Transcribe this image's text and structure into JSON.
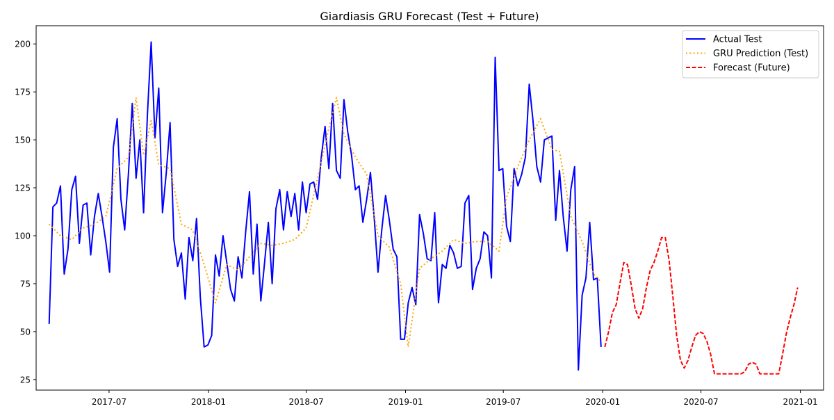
{
  "chart_data": {
    "type": "line",
    "title": "Giardiasis GRU Forecast (Test + Future)",
    "xlabel": "",
    "ylabel": "",
    "grid": false,
    "legend_position": "top-right",
    "x_ticks": [
      "2017-07",
      "2018-01",
      "2018-07",
      "2019-01",
      "2019-07",
      "2020-01",
      "2020-07",
      "2021-01"
    ],
    "y_ticks": [
      25,
      50,
      75,
      100,
      125,
      150,
      175,
      200
    ],
    "xlim": [
      "2017-02-16",
      "2021-02-13"
    ],
    "ylim": [
      19.5,
      209.5
    ],
    "series": [
      {
        "name": "Actual Test",
        "color": "#0000ff",
        "style": "solid",
        "x": [
          "2017-03-12",
          "2017-03-19",
          "2017-03-26",
          "2017-04-02",
          "2017-04-09",
          "2017-04-16",
          "2017-04-23",
          "2017-04-30",
          "2017-05-07",
          "2017-05-14",
          "2017-05-21",
          "2017-05-28",
          "2017-06-04",
          "2017-06-11",
          "2017-06-18",
          "2017-06-25",
          "2017-07-02",
          "2017-07-09",
          "2017-07-16",
          "2017-07-23",
          "2017-07-30",
          "2017-08-06",
          "2017-08-13",
          "2017-08-20",
          "2017-08-27",
          "2017-09-03",
          "2017-09-10",
          "2017-09-17",
          "2017-09-24",
          "2017-10-01",
          "2017-10-08",
          "2017-10-15",
          "2017-10-22",
          "2017-10-29",
          "2017-11-05",
          "2017-11-12",
          "2017-11-19",
          "2017-11-26",
          "2017-12-03",
          "2017-12-10",
          "2017-12-17",
          "2017-12-24",
          "2017-12-31",
          "2018-01-07",
          "2018-01-14",
          "2018-01-21",
          "2018-01-28",
          "2018-02-04",
          "2018-02-11",
          "2018-02-18",
          "2018-02-25",
          "2018-03-04",
          "2018-03-11",
          "2018-03-18",
          "2018-03-25",
          "2018-04-01",
          "2018-04-08",
          "2018-04-15",
          "2018-04-22",
          "2018-04-29",
          "2018-05-06",
          "2018-05-13",
          "2018-05-20",
          "2018-05-27",
          "2018-06-03",
          "2018-06-10",
          "2018-06-17",
          "2018-06-24",
          "2018-07-01",
          "2018-07-08",
          "2018-07-15",
          "2018-07-22",
          "2018-07-29",
          "2018-08-05",
          "2018-08-12",
          "2018-08-19",
          "2018-08-26",
          "2018-09-02",
          "2018-09-09",
          "2018-09-16",
          "2018-09-23",
          "2018-09-30",
          "2018-10-07",
          "2018-10-14",
          "2018-10-21",
          "2018-10-28",
          "2018-11-04",
          "2018-11-11",
          "2018-11-18",
          "2018-11-25",
          "2018-12-02",
          "2018-12-09",
          "2018-12-16",
          "2018-12-23",
          "2018-12-30",
          "2019-01-06",
          "2019-01-13",
          "2019-01-20",
          "2019-01-27",
          "2019-02-03",
          "2019-02-10",
          "2019-02-17",
          "2019-02-24",
          "2019-03-03",
          "2019-03-10",
          "2019-03-17",
          "2019-03-24",
          "2019-03-31",
          "2019-04-07",
          "2019-04-14",
          "2019-04-21",
          "2019-04-28",
          "2019-05-05",
          "2019-05-12",
          "2019-05-19",
          "2019-05-26",
          "2019-06-02",
          "2019-06-09",
          "2019-06-16",
          "2019-06-23",
          "2019-06-30",
          "2019-07-07",
          "2019-07-14",
          "2019-07-21",
          "2019-07-28",
          "2019-08-04",
          "2019-08-11",
          "2019-08-18",
          "2019-08-25",
          "2019-09-01",
          "2019-09-08",
          "2019-09-15",
          "2019-09-22",
          "2019-09-29",
          "2019-10-06",
          "2019-10-13",
          "2019-10-20",
          "2019-10-27",
          "2019-11-03",
          "2019-11-10",
          "2019-11-17",
          "2019-11-24",
          "2019-12-01",
          "2019-12-08",
          "2019-12-15",
          "2019-12-22",
          "2019-12-29"
        ],
        "y": [
          54,
          115,
          117,
          126,
          80,
          93,
          124,
          131,
          96,
          116,
          117,
          90,
          110,
          122,
          110,
          97,
          81,
          146,
          161,
          119,
          103,
          133,
          169,
          130,
          150,
          112,
          163,
          201,
          151,
          177,
          112,
          133,
          159,
          98,
          84,
          91,
          67,
          99,
          87,
          109,
          68,
          42,
          43,
          48,
          90,
          79,
          100,
          86,
          72,
          66,
          89,
          78,
          102,
          123,
          80,
          106,
          66,
          86,
          107,
          75,
          114,
          124,
          103,
          123,
          110,
          122,
          103,
          128,
          112,
          127,
          128,
          119,
          141,
          157,
          135,
          169,
          134,
          130,
          171,
          154,
          142,
          124,
          126,
          107,
          119,
          133,
          109,
          81,
          103,
          121,
          108,
          93,
          89,
          46,
          46,
          65,
          73,
          64,
          111,
          101,
          88,
          87,
          112,
          65,
          85,
          83,
          95,
          91,
          83,
          84,
          117,
          121,
          72,
          83,
          88,
          102,
          100,
          78,
          193,
          134,
          135,
          105,
          97,
          135,
          126,
          132,
          141,
          179,
          160,
          136,
          128,
          150,
          151,
          152,
          108,
          134,
          110,
          92,
          124,
          136,
          30,
          69,
          78,
          107,
          77,
          78,
          42
        ]
      },
      {
        "name": "GRU Prediction (Test)",
        "color": "#ffa500",
        "style": "dotted",
        "x": [
          "2017-03-12",
          "2017-04-02",
          "2017-04-23",
          "2017-05-14",
          "2017-06-04",
          "2017-06-25",
          "2017-07-16",
          "2017-08-06",
          "2017-08-20",
          "2017-09-03",
          "2017-09-17",
          "2017-10-01",
          "2017-10-22",
          "2017-11-12",
          "2017-12-03",
          "2017-12-24",
          "2018-01-14",
          "2018-02-04",
          "2018-02-25",
          "2018-03-18",
          "2018-04-08",
          "2018-04-29",
          "2018-05-20",
          "2018-06-10",
          "2018-07-01",
          "2018-07-22",
          "2018-08-12",
          "2018-08-26",
          "2018-09-09",
          "2018-09-30",
          "2018-10-21",
          "2018-11-11",
          "2018-12-02",
          "2018-12-23",
          "2019-01-06",
          "2019-01-27",
          "2019-02-17",
          "2019-03-10",
          "2019-03-31",
          "2019-04-21",
          "2019-05-12",
          "2019-06-02",
          "2019-06-23",
          "2019-07-07",
          "2019-07-28",
          "2019-08-18",
          "2019-09-08",
          "2019-09-29",
          "2019-10-13",
          "2019-11-03",
          "2019-11-24",
          "2019-12-15",
          "2019-12-29"
        ],
        "y": [
          106,
          100,
          98,
          104,
          106,
          110,
          135,
          141,
          172,
          142,
          160,
          137,
          135,
          106,
          103,
          85,
          65,
          85,
          82,
          89,
          96,
          95,
          96,
          98,
          104,
          130,
          156,
          172,
          153,
          141,
          132,
          100,
          94,
          75,
          42,
          83,
          88,
          92,
          98,
          96,
          97,
          97,
          92,
          120,
          136,
          150,
          161,
          145,
          144,
          110,
          97,
          80,
          76
        ]
      },
      {
        "name": "Forecast (Future)",
        "color": "#ff0000",
        "style": "dashed",
        "x": [
          "2020-01-05",
          "2020-01-12",
          "2020-01-19",
          "2020-01-26",
          "2020-02-02",
          "2020-02-09",
          "2020-02-16",
          "2020-02-23",
          "2020-03-01",
          "2020-03-08",
          "2020-03-15",
          "2020-03-22",
          "2020-03-29",
          "2020-04-05",
          "2020-04-12",
          "2020-04-19",
          "2020-04-26",
          "2020-05-03",
          "2020-05-10",
          "2020-05-17",
          "2020-05-24",
          "2020-05-31",
          "2020-06-07",
          "2020-06-14",
          "2020-06-21",
          "2020-06-28",
          "2020-07-05",
          "2020-07-12",
          "2020-07-19",
          "2020-07-26",
          "2020-08-02",
          "2020-08-09",
          "2020-08-16",
          "2020-08-23",
          "2020-08-30",
          "2020-09-06",
          "2020-09-13",
          "2020-09-20",
          "2020-09-27",
          "2020-10-04",
          "2020-10-11",
          "2020-10-18",
          "2020-10-25",
          "2020-11-01",
          "2020-11-08",
          "2020-11-15",
          "2020-11-22",
          "2020-11-29",
          "2020-12-06",
          "2020-12-13",
          "2020-12-20",
          "2020-12-27"
        ],
        "y": [
          42,
          50,
          60,
          64,
          75,
          86,
          85,
          74,
          62,
          57,
          62,
          73,
          82,
          86,
          92,
          99,
          99,
          87,
          68,
          48,
          35,
          31,
          35,
          42,
          48,
          50,
          49,
          45,
          38,
          28,
          28,
          28,
          28,
          28,
          28,
          28,
          28,
          29,
          33,
          34,
          33,
          28,
          28,
          28,
          28,
          28,
          28,
          38,
          49,
          57,
          64,
          73
        ]
      }
    ]
  }
}
